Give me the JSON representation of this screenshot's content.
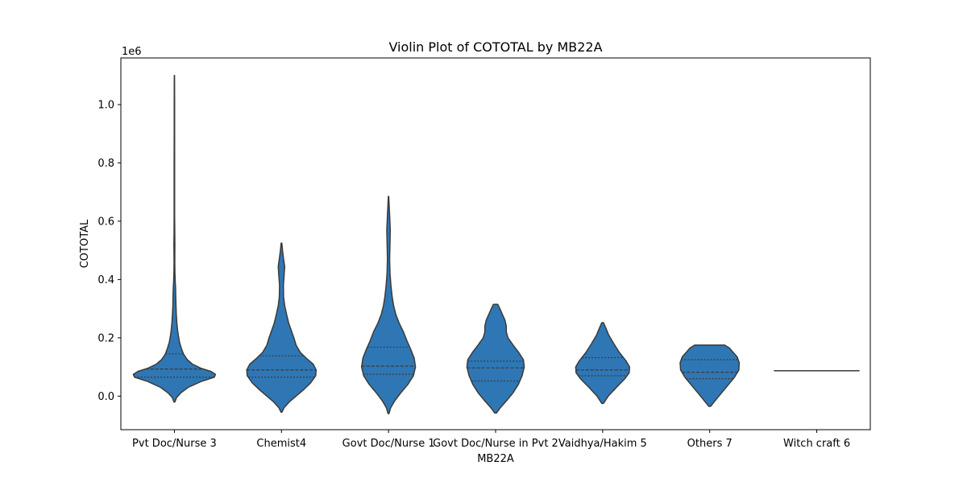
{
  "chart_data": {
    "type": "violin",
    "title": "Violin Plot of COTOTAL by MB22A",
    "xlabel": "MB22A",
    "ylabel": "COTOTAL",
    "y_offset_label": "1e6",
    "ylim": [
      -115000,
      1160000
    ],
    "y_ticks": [
      0,
      200000,
      400000,
      600000,
      800000,
      1000000
    ],
    "y_tick_labels": [
      "0.0",
      "0.2",
      "0.4",
      "0.6",
      "0.8",
      "1.0"
    ],
    "grid": false,
    "legend": "none",
    "fill_color": "#2f77b4",
    "edge_color": "#3a3a3a",
    "inner": "quartile",
    "categories": [
      "Pvt Doc/Nurse 3",
      "Chemist4",
      "Govt Doc/Nurse 1",
      "Govt Doc/Nurse in Pvt 2",
      "Vaidhya/Hakim 5",
      "Others 7",
      "Witch craft 6"
    ],
    "violins": [
      {
        "category": "Pvt Doc/Nurse 3",
        "profile": [
          [
            -20000,
            0.01
          ],
          [
            -5000,
            0.05
          ],
          [
            10000,
            0.14
          ],
          [
            30000,
            0.32
          ],
          [
            50000,
            0.62
          ],
          [
            65000,
            0.93
          ],
          [
            75000,
            0.96
          ],
          [
            85000,
            0.85
          ],
          [
            95000,
            0.63
          ],
          [
            110000,
            0.42
          ],
          [
            125000,
            0.3
          ],
          [
            145000,
            0.21
          ],
          [
            165000,
            0.16
          ],
          [
            185000,
            0.12
          ],
          [
            205000,
            0.095
          ],
          [
            225000,
            0.075
          ],
          [
            250000,
            0.058
          ],
          [
            280000,
            0.045
          ],
          [
            310000,
            0.037
          ],
          [
            340000,
            0.032
          ],
          [
            370000,
            0.027
          ],
          [
            390000,
            0.02
          ],
          [
            420000,
            0.012
          ],
          [
            460000,
            0.009
          ],
          [
            520000,
            0.011
          ],
          [
            560000,
            0.008
          ],
          [
            620000,
            0.006
          ],
          [
            700000,
            0.006
          ],
          [
            800000,
            0.006
          ],
          [
            900000,
            0.005
          ],
          [
            1000000,
            0.005
          ],
          [
            1100000,
            0.003
          ]
        ],
        "quartiles": [
          65000,
          93000,
          145000
        ]
      },
      {
        "category": "Chemist4",
        "profile": [
          [
            -55000,
            0.01
          ],
          [
            -40000,
            0.06
          ],
          [
            -20000,
            0.18
          ],
          [
            0,
            0.34
          ],
          [
            20000,
            0.5
          ],
          [
            45000,
            0.68
          ],
          [
            70000,
            0.8
          ],
          [
            90000,
            0.81
          ],
          [
            110000,
            0.74
          ],
          [
            130000,
            0.58
          ],
          [
            150000,
            0.44
          ],
          [
            175000,
            0.34
          ],
          [
            200000,
            0.29
          ],
          [
            225000,
            0.23
          ],
          [
            250000,
            0.17
          ],
          [
            280000,
            0.12
          ],
          [
            310000,
            0.075
          ],
          [
            340000,
            0.05
          ],
          [
            380000,
            0.045
          ],
          [
            420000,
            0.065
          ],
          [
            445000,
            0.075
          ],
          [
            470000,
            0.05
          ],
          [
            500000,
            0.025
          ],
          [
            525000,
            0.008
          ]
        ],
        "quartiles": [
          65000,
          90000,
          138000
        ]
      },
      {
        "category": "Govt Doc/Nurse 1",
        "profile": [
          [
            -60000,
            0.01
          ],
          [
            -40000,
            0.05
          ],
          [
            -15000,
            0.15
          ],
          [
            10000,
            0.28
          ],
          [
            40000,
            0.45
          ],
          [
            70000,
            0.58
          ],
          [
            100000,
            0.63
          ],
          [
            130000,
            0.6
          ],
          [
            160000,
            0.52
          ],
          [
            190000,
            0.43
          ],
          [
            220000,
            0.35
          ],
          [
            250000,
            0.25
          ],
          [
            280000,
            0.17
          ],
          [
            310000,
            0.12
          ],
          [
            340000,
            0.085
          ],
          [
            380000,
            0.055
          ],
          [
            420000,
            0.035
          ],
          [
            470000,
            0.025
          ],
          [
            530000,
            0.035
          ],
          [
            570000,
            0.04
          ],
          [
            620000,
            0.025
          ],
          [
            660000,
            0.012
          ],
          [
            685000,
            0.005
          ]
        ],
        "quartiles": [
          75000,
          103000,
          168000
        ]
      },
      {
        "category": "Govt Doc/Nurse in Pvt 2",
        "profile": [
          [
            -58000,
            0.02
          ],
          [
            -40000,
            0.11
          ],
          [
            -15000,
            0.26
          ],
          [
            10000,
            0.4
          ],
          [
            40000,
            0.53
          ],
          [
            70000,
            0.62
          ],
          [
            100000,
            0.67
          ],
          [
            125000,
            0.65
          ],
          [
            150000,
            0.54
          ],
          [
            175000,
            0.41
          ],
          [
            200000,
            0.29
          ],
          [
            220000,
            0.25
          ],
          [
            240000,
            0.25
          ],
          [
            260000,
            0.22
          ],
          [
            280000,
            0.16
          ],
          [
            300000,
            0.1
          ],
          [
            315000,
            0.05
          ]
        ],
        "quartiles": [
          52000,
          97000,
          120000
        ]
      },
      {
        "category": "Vaidhya/Hakim 5",
        "profile": [
          [
            -25000,
            0.02
          ],
          [
            0,
            0.13
          ],
          [
            30000,
            0.32
          ],
          [
            60000,
            0.52
          ],
          [
            80000,
            0.62
          ],
          [
            100000,
            0.63
          ],
          [
            120000,
            0.55
          ],
          [
            150000,
            0.39
          ],
          [
            180000,
            0.26
          ],
          [
            210000,
            0.14
          ],
          [
            235000,
            0.07
          ],
          [
            252000,
            0.02
          ]
        ],
        "quartiles": [
          70000,
          90000,
          132000
        ]
      },
      {
        "category": "Others 7",
        "profile": [
          [
            -35000,
            0.02
          ],
          [
            -15000,
            0.13
          ],
          [
            10000,
            0.27
          ],
          [
            40000,
            0.44
          ],
          [
            65000,
            0.58
          ],
          [
            90000,
            0.68
          ],
          [
            115000,
            0.69
          ],
          [
            135000,
            0.64
          ],
          [
            150000,
            0.55
          ],
          [
            165000,
            0.46
          ],
          [
            175000,
            0.35
          ]
        ],
        "quartiles": [
          60000,
          82000,
          125000
        ]
      },
      {
        "category": "Witch craft 6",
        "point": 87000
      }
    ]
  }
}
